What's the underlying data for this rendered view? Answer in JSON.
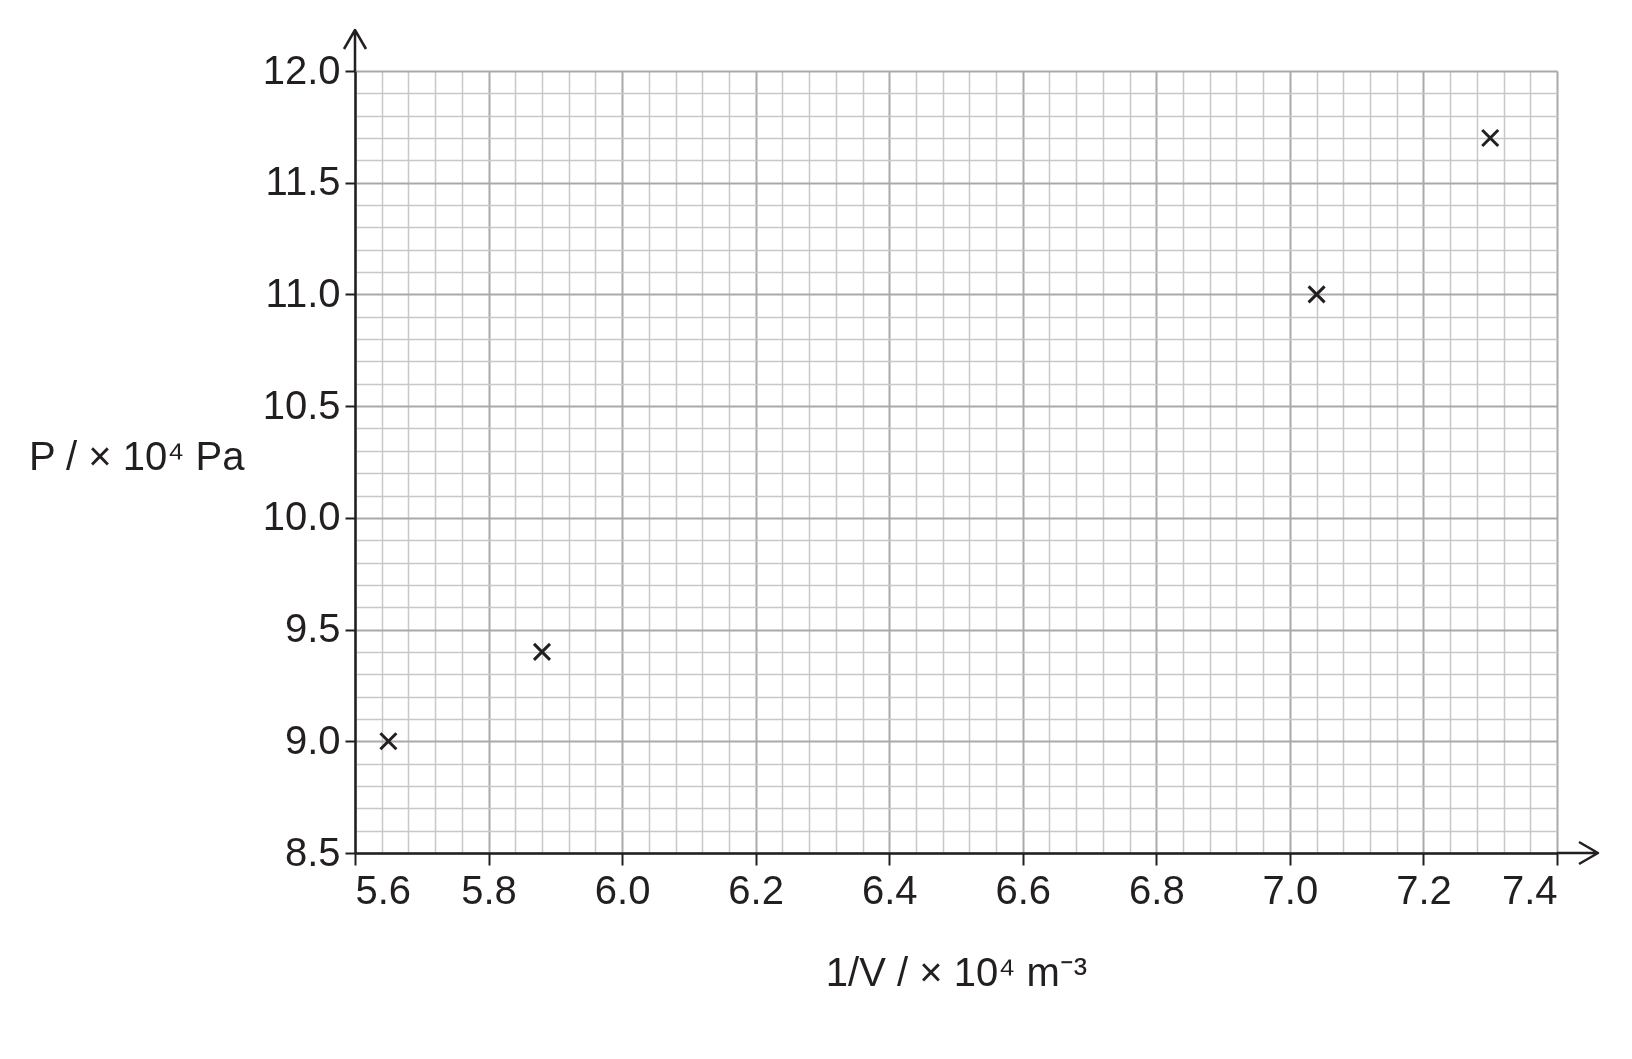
{
  "chart_data": {
    "type": "scatter",
    "xlabel": "1/V / × 10⁴ m⁻³",
    "ylabel": "P / × 10⁴ Pa",
    "x": [
      5.65,
      5.88,
      7.04,
      7.3
    ],
    "series": [
      {
        "color": "#231f20",
        "values": [
          9.0,
          9.4,
          11.0,
          11.7
        ]
      }
    ],
    "marker": "cross",
    "grid": true,
    "xlim": [
      5.6,
      7.4
    ],
    "ylim": [
      8.5,
      12.0
    ],
    "xticks": [
      5.6,
      {
        "value": 5.64,
        "label": null
      },
      {
        "value": 5.68,
        "label": null
      },
      {
        "value": 5.72,
        "label": null
      },
      {
        "value": 5.76,
        "label": null
      },
      5.8,
      {
        "value": 5.84,
        "label": null
      },
      {
        "value": 5.88,
        "label": null
      },
      {
        "value": 5.92,
        "label": null
      },
      {
        "value": 5.96,
        "label": null
      },
      {
        "value": 6,
        "label": "6.0"
      },
      {
        "value": 6.04,
        "label": null
      },
      {
        "value": 6.08,
        "label": null
      },
      {
        "value": 6.12,
        "label": null
      },
      {
        "value": 6.16,
        "label": null
      },
      6.2,
      {
        "value": 6.24,
        "label": null
      },
      {
        "value": 6.28,
        "label": null
      },
      {
        "value": 6.32,
        "label": null
      },
      {
        "value": 6.36,
        "label": null
      },
      6.4,
      {
        "value": 6.44,
        "label": null
      },
      {
        "value": 6.48,
        "label": null
      },
      {
        "value": 6.52,
        "label": null
      },
      {
        "value": 6.56,
        "label": null
      },
      6.6,
      {
        "value": 6.64,
        "label": null
      },
      {
        "value": 6.68,
        "label": null
      },
      {
        "value": 6.72,
        "label": null
      },
      {
        "value": 6.76,
        "label": null
      },
      6.8,
      {
        "value": 6.84,
        "label": null
      },
      {
        "value": 6.88,
        "label": null
      },
      {
        "value": 6.92,
        "label": null
      },
      {
        "value": 6.96,
        "label": null
      },
      {
        "value": 7,
        "label": "7.0"
      },
      {
        "value": 7.04,
        "label": null
      },
      {
        "value": 7.08,
        "label": null
      },
      {
        "value": 7.12,
        "label": null
      },
      {
        "value": 7.16,
        "label": null
      },
      7.2,
      {
        "value": 7.24,
        "label": null
      },
      {
        "value": 7.28,
        "label": null
      },
      {
        "value": 7.32,
        "label": null
      },
      {
        "value": 7.36,
        "label": null
      },
      7.4
    ],
    "yticks": [
      8.5,
      {
        "value": 8.6,
        "label": null
      },
      {
        "value": 8.7,
        "label": null
      },
      {
        "value": 8.8,
        "label": null
      },
      {
        "value": 8.9,
        "label": null
      },
      {
        "value": 9,
        "label": "9.0"
      },
      {
        "value": 9.1,
        "label": null
      },
      {
        "value": 9.2,
        "label": null
      },
      {
        "value": 9.3,
        "label": null
      },
      {
        "value": 9.4,
        "label": null
      },
      9.5,
      {
        "value": 9.6,
        "label": null
      },
      {
        "value": 9.7,
        "label": null
      },
      {
        "value": 9.8,
        "label": null
      },
      {
        "value": 9.9,
        "label": null
      },
      {
        "value": 10,
        "label": "10.0"
      },
      {
        "value": 10.1,
        "label": null
      },
      {
        "value": 10.2,
        "label": null
      },
      {
        "value": 10.3,
        "label": null
      },
      {
        "value": 10.4,
        "label": null
      },
      10.5,
      {
        "value": 10.6,
        "label": null
      },
      {
        "value": 10.7,
        "label": null
      },
      {
        "value": 10.8,
        "label": null
      },
      {
        "value": 10.9,
        "label": null
      },
      {
        "value": 11,
        "label": "11.0"
      },
      {
        "value": 11.1,
        "label": null
      },
      {
        "value": 11.2,
        "label": null
      },
      {
        "value": 11.3,
        "label": null
      },
      {
        "value": 11.4,
        "label": null
      },
      11.5,
      {
        "value": 11.6,
        "label": null
      },
      {
        "value": 11.7,
        "label": null
      },
      {
        "value": 11.8,
        "label": null
      },
      {
        "value": 11.9,
        "label": null
      },
      {
        "value": 12,
        "label": "12.0"
      }
    ]
  }
}
